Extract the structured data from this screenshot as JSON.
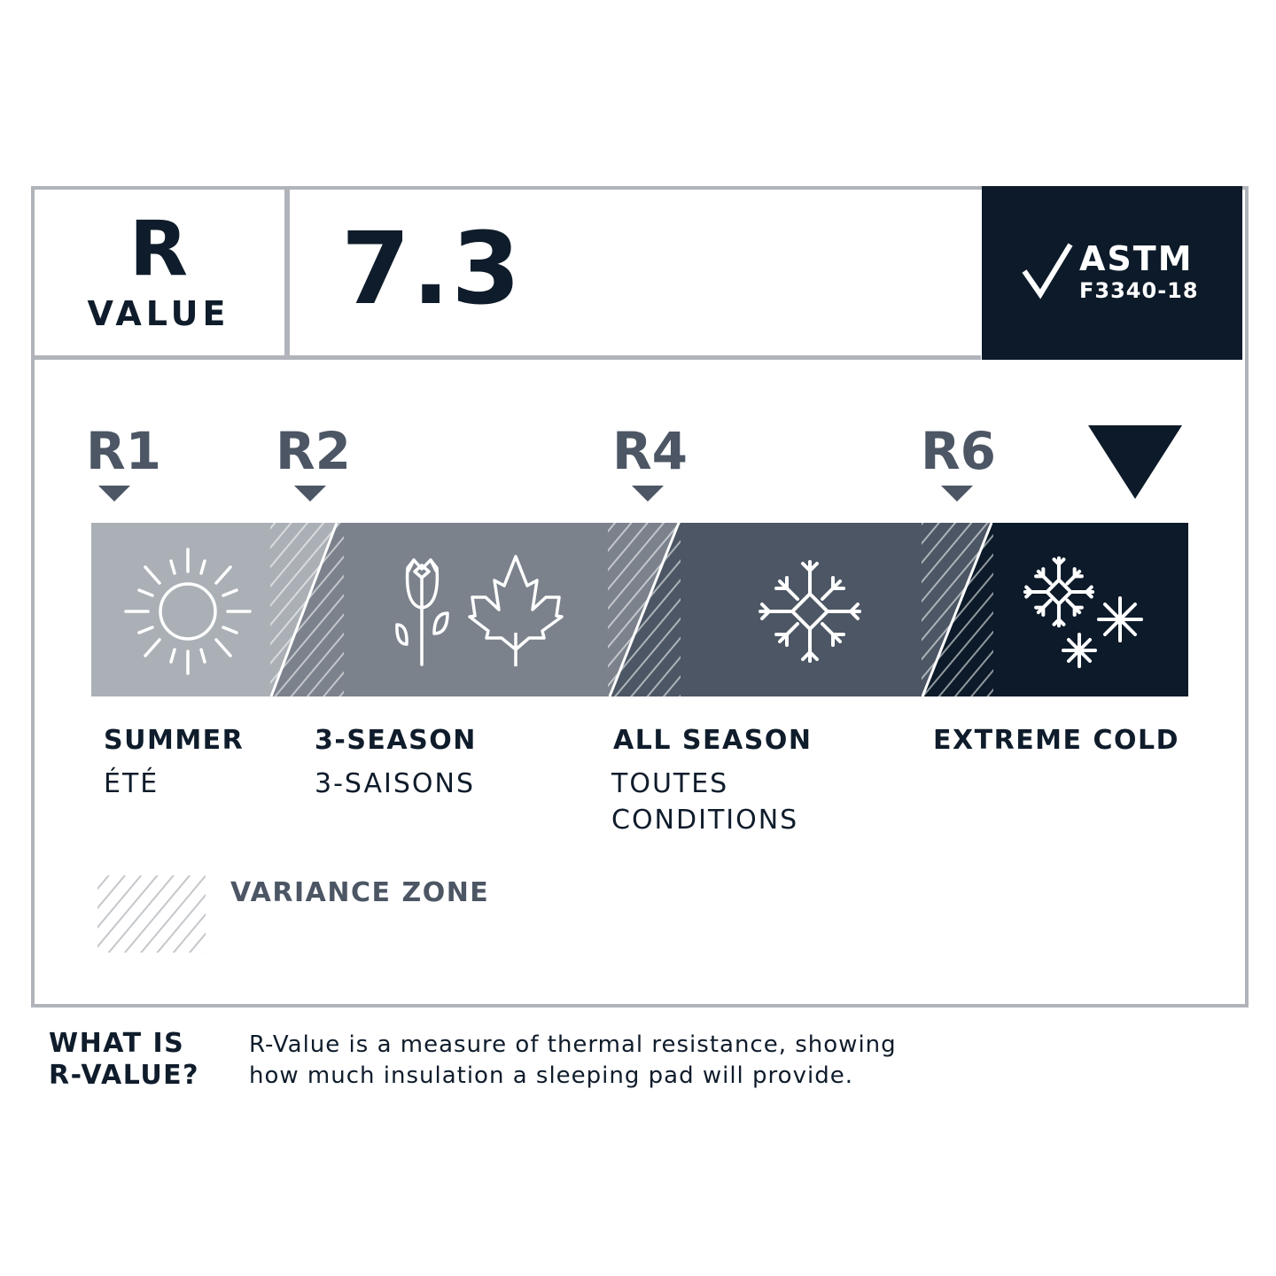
{
  "header": {
    "r_letter": "R",
    "r_word": "VALUE",
    "value": "7.3",
    "badge": {
      "title": "ASTM",
      "code": "F3340-18",
      "icon": "checkmark-icon"
    }
  },
  "markers": [
    "R1",
    "R2",
    "R4",
    "R6"
  ],
  "current_marker_icon": "triangle-down-icon",
  "segments": [
    {
      "label": "SUMMER",
      "sub": "ÉTÉ",
      "color": "#abb0b6",
      "icon": "sun-icon"
    },
    {
      "label": "3-SEASON",
      "sub": "3-SAISONS",
      "color": "#7b828c",
      "icon": "tulip-and-maple-leaf-icon"
    },
    {
      "label": "ALL SEASON",
      "sub": "TOUTES CONDITIONS",
      "sub_lines": [
        "TOUTES",
        "CONDITIONS"
      ],
      "color": "#4c5664",
      "icon": "snowflake-icon"
    },
    {
      "label": "EXTREME COLD",
      "sub": "",
      "color": "#0c1a29",
      "icon": "snowflakes-icon"
    }
  ],
  "legend": {
    "label": "VARIANCE ZONE"
  },
  "footer": {
    "title_lines": [
      "WHAT IS",
      "R-VALUE?"
    ],
    "desc_lines": [
      "R-Value is a measure of thermal resistance, showing",
      "how much insulation a sleeping pad will provide."
    ]
  }
}
